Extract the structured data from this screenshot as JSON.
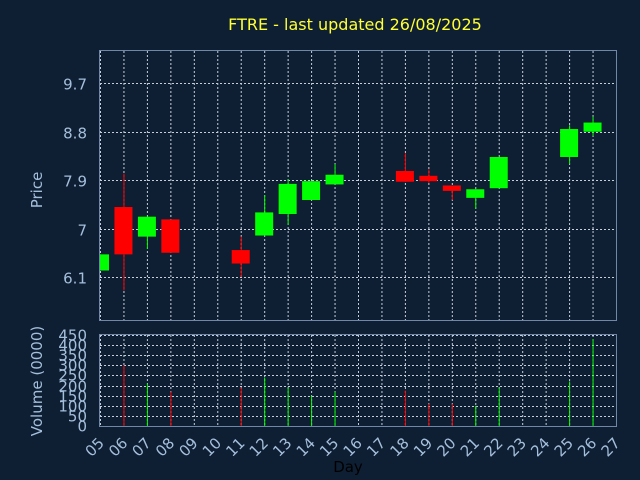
{
  "chart_data": {
    "type": "candlestick",
    "title": "FTRE - last updated 26/08/2025",
    "xlabel": "Day",
    "price_ylabel": "Price",
    "volume_ylabel": "Volume (0000)",
    "x_ticks": [
      "05",
      "06",
      "07",
      "08",
      "09",
      "10",
      "11",
      "12",
      "13",
      "14",
      "15",
      "16",
      "17",
      "18",
      "19",
      "20",
      "21",
      "22",
      "23",
      "24",
      "25",
      "26",
      "27"
    ],
    "price_ticks": [
      "9.7",
      "8.8",
      "7.9",
      "7",
      "6.1"
    ],
    "price_tick_values": [
      9.7,
      8.8,
      7.9,
      7.0,
      6.1
    ],
    "price_ylim": [
      5.3,
      10.3
    ],
    "volume_ticks": [
      "450",
      "400",
      "350",
      "300",
      "250",
      "200",
      "150",
      "100",
      "50",
      "0"
    ],
    "volume_tick_values": [
      450,
      400,
      350,
      300,
      250,
      200,
      150,
      100,
      50,
      0
    ],
    "volume_ylim": [
      0,
      450
    ],
    "xlim": [
      5,
      27
    ],
    "grid": true,
    "colors": {
      "up": "#00ff00",
      "down": "#ff0000",
      "title": "#ffff33",
      "axis_text": "#a4bfdc",
      "frame": "#6f88a8",
      "background": "#0f1f33"
    },
    "candles": [
      {
        "day": "05",
        "open": 6.22,
        "high": 6.52,
        "low": 6.22,
        "close": 6.52,
        "volume": 0
      },
      {
        "day": "06",
        "open": 7.4,
        "high": 8.02,
        "low": 5.85,
        "close": 6.52,
        "volume": 300
      },
      {
        "day": "07",
        "open": 6.85,
        "high": 7.22,
        "low": 6.62,
        "close": 7.22,
        "volume": 210
      },
      {
        "day": "08",
        "open": 7.17,
        "high": 7.17,
        "low": 6.55,
        "close": 6.55,
        "volume": 170
      },
      {
        "day": "11",
        "open": 6.6,
        "high": 6.85,
        "low": 6.1,
        "close": 6.35,
        "volume": 190
      },
      {
        "day": "12",
        "open": 6.87,
        "high": 7.62,
        "low": 6.87,
        "close": 7.3,
        "volume": 240
      },
      {
        "day": "13",
        "open": 7.27,
        "high": 7.92,
        "low": 7.07,
        "close": 7.83,
        "volume": 190
      },
      {
        "day": "14",
        "open": 7.53,
        "high": 7.88,
        "low": 7.53,
        "close": 7.88,
        "volume": 150
      },
      {
        "day": "15",
        "open": 7.82,
        "high": 8.2,
        "low": 7.82,
        "close": 8.0,
        "volume": 170
      },
      {
        "day": "18",
        "open": 8.07,
        "high": 8.4,
        "low": 7.87,
        "close": 7.87,
        "volume": 175
      },
      {
        "day": "19",
        "open": 7.98,
        "high": 8.1,
        "low": 7.85,
        "close": 7.88,
        "volume": 110
      },
      {
        "day": "20",
        "open": 7.8,
        "high": 7.8,
        "low": 7.53,
        "close": 7.7,
        "volume": 110
      },
      {
        "day": "21",
        "open": 7.57,
        "high": 7.73,
        "low": 7.37,
        "close": 7.73,
        "volume": 100
      },
      {
        "day": "22",
        "open": 7.75,
        "high": 8.33,
        "low": 7.75,
        "close": 8.33,
        "volume": 190
      },
      {
        "day": "25",
        "open": 8.33,
        "high": 8.92,
        "low": 8.2,
        "close": 8.85,
        "volume": 220
      },
      {
        "day": "26",
        "open": 8.8,
        "high": 9.08,
        "low": 8.72,
        "close": 8.97,
        "volume": 430
      }
    ]
  }
}
